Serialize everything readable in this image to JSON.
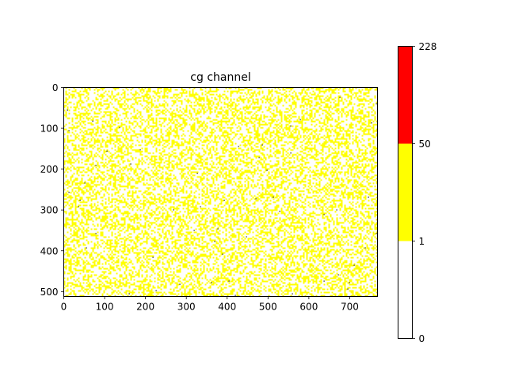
{
  "chart_data": {
    "type": "heatmap",
    "title": "cg channel",
    "xlabel": "",
    "ylabel": "",
    "image_width": 768,
    "image_height": 512,
    "xlim": [
      0,
      768
    ],
    "ylim": [
      512,
      0
    ],
    "x_ticks": [
      0,
      100,
      200,
      300,
      400,
      500,
      600,
      700
    ],
    "y_ticks": [
      0,
      100,
      200,
      300,
      400,
      500
    ],
    "grid": false,
    "colorbar": {
      "boundaries": [
        0,
        1,
        50,
        228
      ],
      "tick_labels": [
        "0",
        "1",
        "50",
        "228"
      ],
      "bins": [
        {
          "from": 0,
          "to": 1,
          "color": "#ffffff"
        },
        {
          "from": 1,
          "to": 50,
          "color": "#ffff00"
        },
        {
          "from": 50,
          "to": 228,
          "color": "#ff0000"
        }
      ]
    },
    "pixel_distribution": {
      "zero_fraction": 0.6,
      "low_bin_fraction": 0.4,
      "high_bin_fraction": 0.002
    },
    "speckle_color": "#000000"
  }
}
